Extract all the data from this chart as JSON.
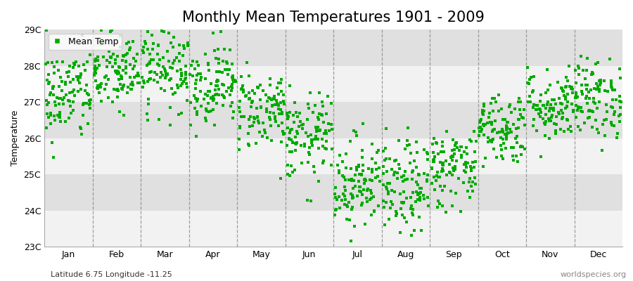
{
  "title": "Monthly Mean Temperatures 1901 - 2009",
  "ylabel": "Temperature",
  "subtitle": "Latitude 6.75 Longitude -11.25",
  "footer_right": "worldspecies.org",
  "ylim": [
    23.0,
    29.0
  ],
  "yticks": [
    23,
    24,
    25,
    26,
    27,
    28,
    29
  ],
  "ytick_labels": [
    "23C",
    "24C",
    "25C",
    "26C",
    "27C",
    "28C",
    "29C"
  ],
  "months": [
    "Jan",
    "Feb",
    "Mar",
    "Apr",
    "May",
    "Jun",
    "Jul",
    "Aug",
    "Sep",
    "Oct",
    "Nov",
    "Dec"
  ],
  "monthly_means": [
    27.2,
    27.8,
    28.0,
    27.5,
    26.8,
    26.0,
    24.8,
    24.6,
    25.2,
    26.3,
    26.9,
    27.1
  ],
  "monthly_stds": [
    0.65,
    0.55,
    0.6,
    0.55,
    0.55,
    0.6,
    0.65,
    0.65,
    0.55,
    0.5,
    0.5,
    0.55
  ],
  "n_years": 109,
  "marker_color": "#00aa00",
  "marker": "s",
  "marker_size": 2.5,
  "legend_label": "Mean Temp",
  "fig_bg_color": "#ffffff",
  "plot_bg_color": "#e8e8e8",
  "band_colors": [
    "#f2f2f2",
    "#e0e0e0"
  ],
  "title_fontsize": 15,
  "label_fontsize": 9,
  "tick_fontsize": 9,
  "footer_fontsize": 8,
  "dashed_line_color": "#888888"
}
